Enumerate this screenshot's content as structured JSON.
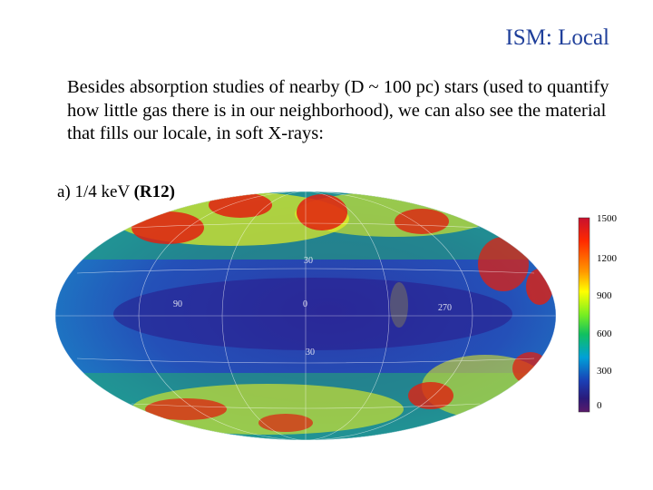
{
  "slide": {
    "title": "ISM: Local",
    "body": "Besides absorption studies of nearby (D ~ 100 pc) stars (used to quantify how little gas there is in our neighborhood), we can also see the material that fills our locale, in soft X-rays:"
  },
  "figure": {
    "panel_prefix": "a) 1/4 keV",
    "panel_band": "(R12)",
    "map_grid_labels": [
      "30",
      "90",
      "0",
      "270",
      "30"
    ],
    "colorbar_ticks": [
      "1500",
      "1200",
      "900",
      "600",
      "300",
      "0"
    ],
    "colorbar_colors": [
      "#c8102e",
      "#ff2a00",
      "#ff9a00",
      "#ffff00",
      "#77ee22",
      "#10c060",
      "#00a0d8",
      "#1a3fb5",
      "#2a1a7a",
      "#5a1a6a"
    ]
  }
}
